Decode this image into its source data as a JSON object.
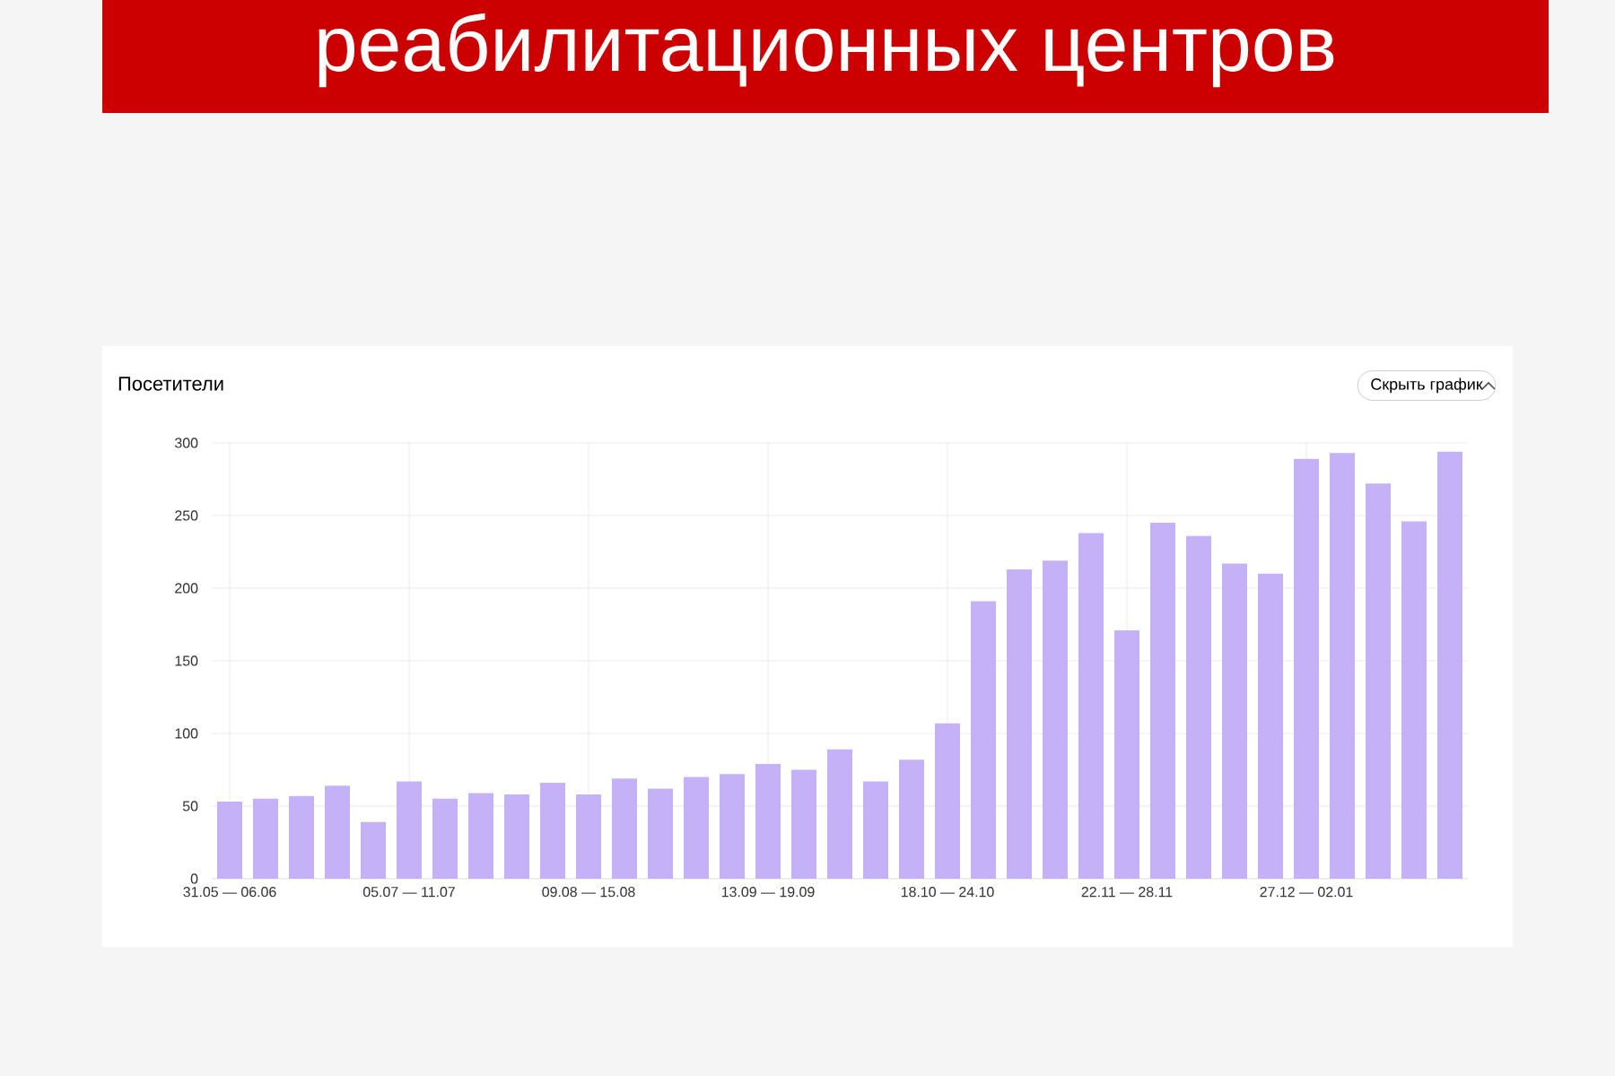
{
  "chart_data": {
    "type": "bar",
    "title": "реабилитационных центров",
    "subtitle": "Посетители",
    "annotations": [
      "Скрыть график"
    ],
    "categories": [
      "31.05 — 06.06",
      null,
      null,
      null,
      null,
      "05.07 — 11.07",
      null,
      null,
      null,
      null,
      "09.08 — 15.08",
      null,
      null,
      null,
      null,
      "13.09 — 19.09",
      null,
      null,
      null,
      null,
      "18.10 — 24.10",
      null,
      null,
      null,
      null,
      "22.11 — 28.11",
      null,
      null,
      null,
      null,
      "27.12 — 02.01",
      null,
      null,
      null,
      null
    ],
    "values": [
      53,
      55,
      57,
      64,
      39,
      67,
      55,
      59,
      58,
      66,
      58,
      69,
      62,
      70,
      72,
      79,
      75,
      89,
      67,
      82,
      107,
      191,
      213,
      219,
      238,
      171,
      245,
      236,
      217,
      210,
      289,
      293,
      272,
      246,
      294
    ],
    "color": "#c4b1f8",
    "ylim": [
      0,
      300
    ],
    "yticks": [
      0,
      50,
      100,
      150,
      200,
      250,
      300
    ],
    "grid": true
  }
}
